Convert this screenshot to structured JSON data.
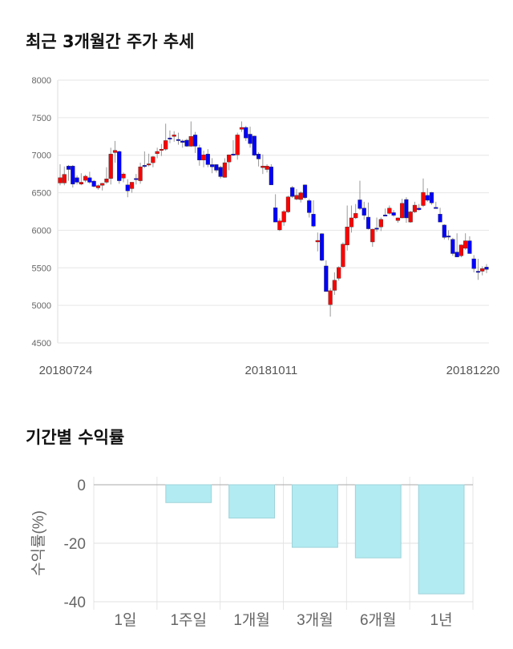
{
  "section1_title": "최근 3개월간 주가 추세",
  "section2_title": "기간별 수익률",
  "chart_data": [
    {
      "type": "candlestick",
      "title": "최근 3개월간 주가 추세",
      "ylim": [
        4500,
        8000
      ],
      "yticks": [
        4500,
        5000,
        5500,
        6000,
        6500,
        7000,
        7500,
        8000
      ],
      "xtick_labels": [
        {
          "index": 1,
          "label": "20180724"
        },
        {
          "index": 50,
          "label": "20181011"
        },
        {
          "index": 98,
          "label": "20181220"
        }
      ],
      "grid": true,
      "colors": {
        "up": "#ff0000",
        "down": "#0000ff",
        "wick": "#999999"
      },
      "ohlc": [
        [
          6630,
          6880,
          6600,
          6700
        ],
        [
          6630,
          6850,
          6600,
          6745
        ],
        [
          6855,
          6870,
          6660,
          6810
        ],
        [
          6855,
          6870,
          6570,
          6615
        ],
        [
          6700,
          6730,
          6610,
          6640
        ],
        [
          6615,
          6760,
          6600,
          6640
        ],
        [
          6665,
          6740,
          6640,
          6720
        ],
        [
          6700,
          6780,
          6620,
          6640
        ],
        [
          6655,
          6670,
          6570,
          6585
        ],
        [
          6565,
          6610,
          6540,
          6595
        ],
        [
          6600,
          6630,
          6530,
          6625
        ],
        [
          6640,
          6840,
          6620,
          6685
        ],
        [
          6690,
          7100,
          6610,
          7015
        ],
        [
          7035,
          7190,
          6900,
          7065
        ],
        [
          7050,
          7060,
          6620,
          6660
        ],
        [
          6695,
          6770,
          6640,
          6750
        ],
        [
          6605,
          6680,
          6440,
          6525
        ],
        [
          6555,
          6640,
          6500,
          6640
        ],
        [
          6690,
          6750,
          6610,
          6680
        ],
        [
          6660,
          6900,
          6620,
          6845
        ],
        [
          6865,
          7050,
          6830,
          6855
        ],
        [
          6875,
          7020,
          6850,
          6885
        ],
        [
          6900,
          6990,
          6840,
          6980
        ],
        [
          7020,
          7100,
          6960,
          7050
        ],
        [
          7070,
          7150,
          6990,
          7080
        ],
        [
          7080,
          7420,
          7060,
          7195
        ],
        [
          7230,
          7330,
          7160,
          7220
        ],
        [
          7250,
          7320,
          7180,
          7270
        ],
        [
          7210,
          7300,
          7140,
          7195
        ],
        [
          7190,
          7210,
          7100,
          7170
        ],
        [
          7200,
          7220,
          7110,
          7120
        ],
        [
          7120,
          7450,
          7110,
          7250
        ],
        [
          7270,
          7310,
          7030,
          7120
        ],
        [
          7100,
          7140,
          6860,
          6935
        ],
        [
          6935,
          7060,
          6840,
          7005
        ],
        [
          7015,
          7080,
          6840,
          6875
        ],
        [
          6875,
          6960,
          6760,
          6845
        ],
        [
          6875,
          6880,
          6770,
          6800
        ],
        [
          6840,
          6860,
          6690,
          6715
        ],
        [
          6705,
          6960,
          6700,
          6900
        ],
        [
          6910,
          7010,
          6800,
          7005
        ],
        [
          7015,
          7200,
          6990,
          7005
        ],
        [
          7005,
          7300,
          6940,
          7270
        ],
        [
          7345,
          7450,
          7310,
          7370
        ],
        [
          7370,
          7390,
          7190,
          7230
        ],
        [
          7280,
          7380,
          7100,
          7155
        ],
        [
          7255,
          7260,
          6990,
          7000
        ],
        [
          7015,
          7040,
          6850,
          6950
        ],
        [
          6835,
          7010,
          6750,
          6855
        ],
        [
          6810,
          6880,
          6770,
          6855
        ],
        [
          6845,
          6880,
          6605,
          6605
        ],
        [
          6300,
          6480,
          6110,
          6110
        ],
        [
          6005,
          6160,
          5990,
          6125
        ],
        [
          6110,
          6270,
          6060,
          6250
        ],
        [
          6245,
          6460,
          6230,
          6445
        ],
        [
          6570,
          6590,
          6430,
          6450
        ],
        [
          6415,
          6550,
          6400,
          6465
        ],
        [
          6410,
          6520,
          6370,
          6500
        ],
        [
          6605,
          6610,
          6420,
          6435
        ],
        [
          6395,
          6420,
          6170,
          6235
        ],
        [
          6215,
          6400,
          6040,
          6055
        ],
        [
          5845,
          5970,
          5720,
          5865
        ],
        [
          5955,
          5960,
          5590,
          5600
        ],
        [
          5525,
          5600,
          5200,
          5185
        ],
        [
          5010,
          5230,
          4850,
          5195
        ],
        [
          5200,
          5440,
          5140,
          5335
        ],
        [
          5360,
          5520,
          5330,
          5505
        ],
        [
          5515,
          5840,
          5500,
          5815
        ],
        [
          5805,
          6330,
          5730,
          6045
        ],
        [
          6045,
          6330,
          5970,
          6165
        ],
        [
          6165,
          6350,
          6150,
          6225
        ],
        [
          6405,
          6660,
          6270,
          6290
        ],
        [
          6295,
          6380,
          6140,
          6200
        ],
        [
          6175,
          6370,
          6010,
          6020
        ],
        [
          5845,
          6020,
          5780,
          6015
        ],
        [
          6030,
          6170,
          5980,
          6020
        ],
        [
          6045,
          6170,
          5990,
          6145
        ],
        [
          6205,
          6290,
          6190,
          6195
        ],
        [
          6225,
          6330,
          6210,
          6295
        ],
        [
          6235,
          6270,
          6180,
          6200
        ],
        [
          6130,
          6170,
          6100,
          6165
        ],
        [
          6165,
          6420,
          6160,
          6360
        ],
        [
          6410,
          6440,
          6100,
          6165
        ],
        [
          6110,
          6260,
          6100,
          6245
        ],
        [
          6245,
          6380,
          6230,
          6335
        ],
        [
          6295,
          6350,
          6260,
          6275
        ],
        [
          6330,
          6690,
          6310,
          6505
        ],
        [
          6465,
          6560,
          6380,
          6400
        ],
        [
          6505,
          6510,
          6340,
          6365
        ],
        [
          6305,
          6380,
          6300,
          6300
        ],
        [
          6215,
          6300,
          6110,
          6110
        ],
        [
          6070,
          6080,
          5880,
          5905
        ],
        [
          5925,
          6000,
          5870,
          5915
        ],
        [
          5880,
          5900,
          5660,
          5690
        ],
        [
          5710,
          5960,
          5660,
          5645
        ],
        [
          5660,
          5810,
          5640,
          5805
        ],
        [
          5760,
          5960,
          5740,
          5860
        ],
        [
          5860,
          5920,
          5700,
          5690
        ],
        [
          5620,
          5670,
          5440,
          5490
        ],
        [
          5455,
          5620,
          5340,
          5445
        ],
        [
          5455,
          5520,
          5400,
          5490
        ],
        [
          5510,
          5550,
          5430,
          5480
        ]
      ]
    },
    {
      "type": "bar",
      "title": "기간별 수익률",
      "ylabel": "수익률(%)",
      "categories": [
        "1일",
        "1주일",
        "1개월",
        "3개월",
        "6개월",
        "1년"
      ],
      "values": [
        0,
        -6.1,
        -11.4,
        -21.4,
        -25.0,
        -37.3
      ],
      "ylim": [
        -40,
        0
      ],
      "yticks": [
        0,
        -20,
        -40
      ],
      "grid": true,
      "colors": {
        "fill": "#b2ebf2",
        "stroke": "#9fd3da"
      }
    }
  ]
}
